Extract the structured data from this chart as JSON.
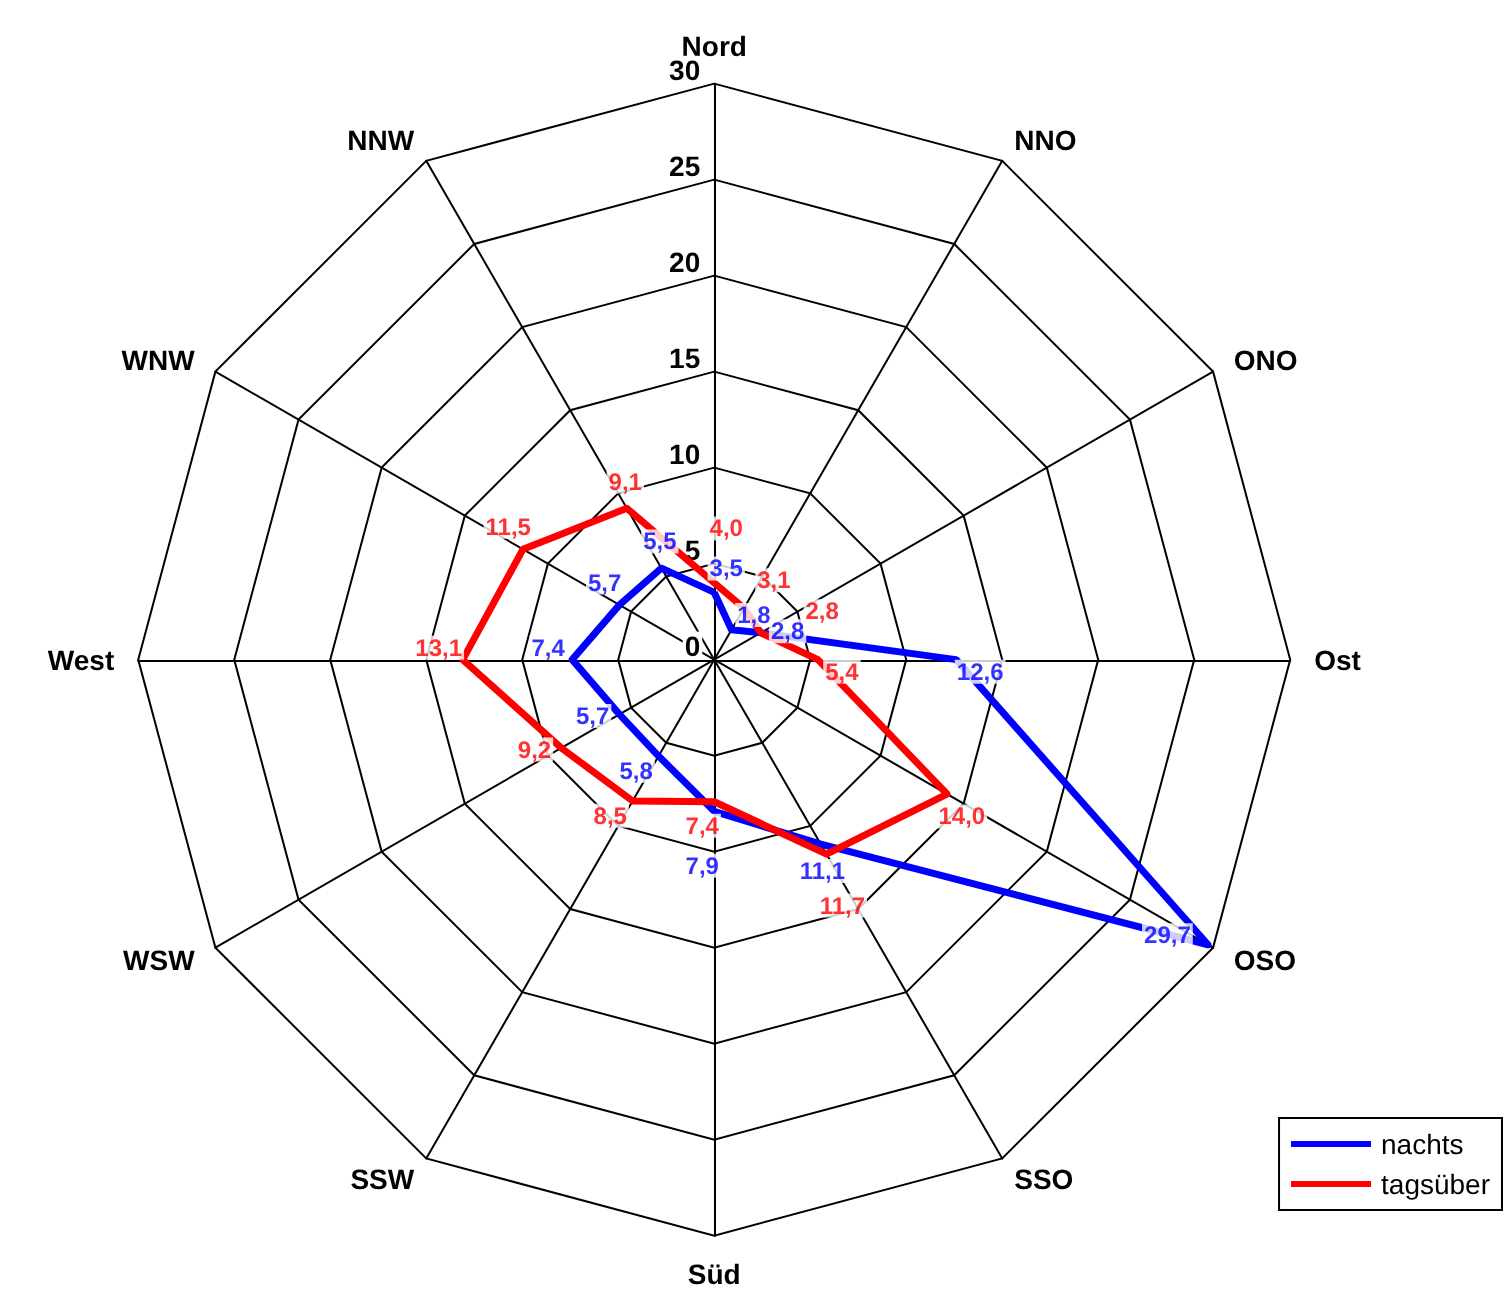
{
  "chart_data": {
    "type": "radar",
    "categories": [
      "Nord",
      "NNO",
      "ONO",
      "Ost",
      "OSO",
      "SSO",
      "Süd",
      "SSW",
      "WSW",
      "West",
      "WNW",
      "NNW"
    ],
    "ylim": [
      0,
      30
    ],
    "yticks": [
      0,
      5,
      10,
      15,
      20,
      25,
      30
    ],
    "legend": "bottom right",
    "marker": "none",
    "line_style": "solid",
    "series": [
      {
        "name": "nachts",
        "color": "#0000ff",
        "values": [
          3.5,
          1.8,
          2.8,
          12.6,
          29.7,
          11.1,
          7.9,
          5.8,
          5.7,
          7.4,
          5.7,
          5.5
        ],
        "value_labels": [
          "3,5",
          "1,8",
          "2,8",
          "12,6",
          "29,7",
          "11,1",
          "7,9",
          "5,8",
          "5,7",
          "7,4",
          "5,7",
          "5,5"
        ]
      },
      {
        "name": "tagsüber",
        "color": "#ff0000",
        "values": [
          4.0,
          3.1,
          2.8,
          5.4,
          14.0,
          11.7,
          7.4,
          8.5,
          9.2,
          13.1,
          11.5,
          9.1
        ],
        "value_labels": [
          "4,0",
          "3,1",
          "2,8",
          "5,4",
          "14,0",
          "11,7",
          "7,4",
          "8,5",
          "9,2",
          "13,1",
          "11,5",
          "9,1"
        ]
      }
    ]
  }
}
